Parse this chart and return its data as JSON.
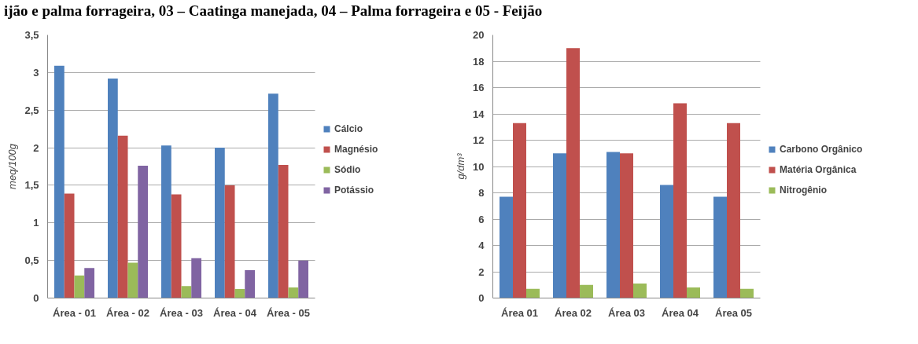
{
  "chart_data": [
    {
      "type": "bar",
      "annotations": [
        "ijão e palma forrageira, 03 – Caatinga manejada, 04 – Palma forrageira e 05 - Feijão"
      ],
      "ylabel": "meq/100g",
      "categories": [
        "Área - 01",
        "Área - 02",
        "Área - 03",
        "Área - 04",
        "Área - 05"
      ],
      "series": [
        {
          "name": "Cálcio",
          "color": "#4f81bd",
          "values": [
            3.09,
            2.92,
            2.03,
            2.0,
            2.72
          ]
        },
        {
          "name": "Magnésio",
          "color": "#c0504d",
          "values": [
            1.39,
            2.16,
            1.38,
            1.5,
            1.77
          ]
        },
        {
          "name": "Sódio",
          "color": "#9bbb59",
          "values": [
            0.3,
            0.47,
            0.16,
            0.12,
            0.14
          ]
        },
        {
          "name": "Potássio",
          "color": "#8064a2",
          "values": [
            0.4,
            1.76,
            0.53,
            0.37,
            0.5
          ]
        }
      ],
      "ylim": [
        0,
        3.5
      ],
      "yticks": [
        0,
        {
          "value": 0.5,
          "label": "0,5"
        },
        1,
        {
          "value": 1.5,
          "label": "1,5"
        },
        2,
        {
          "value": 2.5,
          "label": "2,5"
        },
        3,
        {
          "value": 3.5,
          "label": "3,5"
        }
      ],
      "grid": "y",
      "legend": "right"
    },
    {
      "type": "bar",
      "ylabel": "g/dm³",
      "categories": [
        "Área 01",
        "Área 02",
        "Área 03",
        "Área 04",
        "Área 05"
      ],
      "series": [
        {
          "name": "Carbono Orgânico",
          "color": "#4f81bd",
          "values": [
            7.7,
            11.0,
            11.1,
            8.6,
            7.7
          ]
        },
        {
          "name": "Matéria Orgânica",
          "color": "#c0504d",
          "values": [
            13.3,
            19.0,
            11.0,
            14.8,
            13.3
          ]
        },
        {
          "name": "Nitrogênio",
          "color": "#9bbb59",
          "values": [
            0.7,
            1.0,
            1.1,
            0.8,
            0.7
          ]
        }
      ],
      "ylim": [
        0,
        20
      ],
      "yticks": [
        0,
        2,
        4,
        6,
        8,
        10,
        12,
        14,
        16,
        18,
        20
      ],
      "grid": "y",
      "legend": "right"
    }
  ]
}
